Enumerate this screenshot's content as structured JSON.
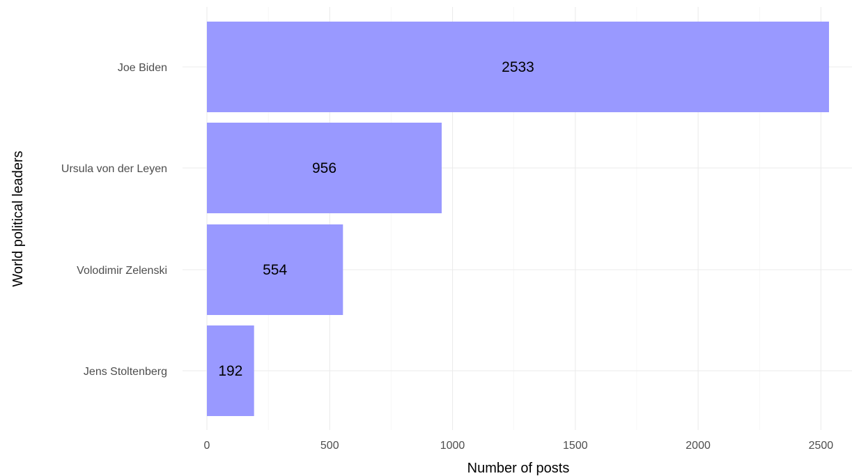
{
  "chart_data": {
    "type": "bar",
    "orientation": "horizontal",
    "categories": [
      "Joe Biden",
      "Ursula von der Leyen",
      "Volodimir Zelenski",
      "Jens Stoltenberg"
    ],
    "values": [
      2533,
      956,
      554,
      192
    ],
    "data_labels": [
      "2533",
      "956",
      "554",
      "192"
    ],
    "xlabel": "Number of posts",
    "ylabel": "World political leaders",
    "xlim": [
      0,
      2600
    ],
    "x_ticks": [
      "0",
      "500",
      "1000",
      "1500",
      "2000",
      "2500"
    ],
    "bar_color": "#9999ff",
    "grid": true,
    "legend": "none"
  }
}
